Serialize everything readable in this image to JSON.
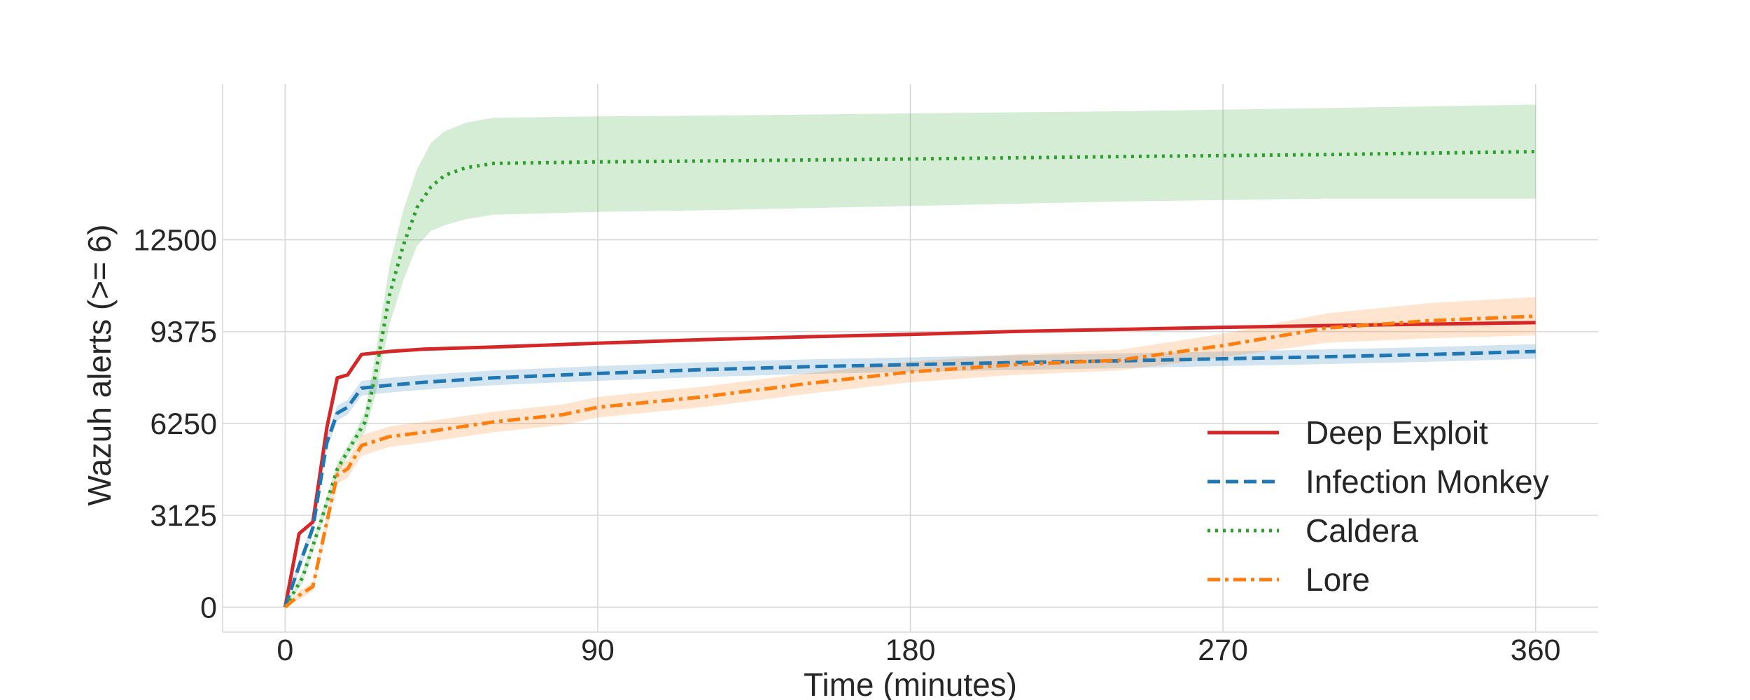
{
  "chart_data": {
    "type": "line",
    "xlabel": "Time (minutes)",
    "ylabel": "Wazuh alerts (>= 6)",
    "xlim": [
      -18,
      378
    ],
    "ylim": [
      -850,
      17800
    ],
    "xticks": [
      0,
      90,
      180,
      270,
      360
    ],
    "yticks": [
      0,
      3125,
      6250,
      9375,
      12500
    ],
    "grid": true,
    "legend_position": "lower right",
    "series": [
      {
        "name": "Deep Exploit",
        "color": "#d62728",
        "style": "solid",
        "x": [
          0,
          4,
          8,
          12,
          15,
          18,
          22,
          30,
          40,
          60,
          90,
          120,
          150,
          180,
          210,
          240,
          270,
          300,
          330,
          360
        ],
        "y": [
          0,
          2500,
          2900,
          6100,
          7800,
          7900,
          8600,
          8700,
          8780,
          8850,
          8980,
          9100,
          9200,
          9280,
          9380,
          9450,
          9520,
          9580,
          9630,
          9680
        ],
        "band_lower": null,
        "band_upper": null
      },
      {
        "name": "Infection Monkey",
        "color": "#1f77b4",
        "style": "dashed",
        "x": [
          0,
          4,
          8,
          12,
          15,
          18,
          22,
          30,
          40,
          60,
          90,
          120,
          150,
          180,
          210,
          240,
          270,
          300,
          330,
          360
        ],
        "y": [
          0,
          1400,
          2700,
          5600,
          6600,
          6800,
          7450,
          7550,
          7650,
          7800,
          7950,
          8080,
          8180,
          8250,
          8320,
          8380,
          8450,
          8520,
          8600,
          8700
        ],
        "band_lower": [
          0,
          1200,
          2500,
          5350,
          6350,
          6550,
          7200,
          7300,
          7400,
          7550,
          7700,
          7830,
          7930,
          8000,
          8070,
          8130,
          8200,
          8270,
          8350,
          8450
        ],
        "band_upper": [
          0,
          1600,
          2900,
          5850,
          6850,
          7050,
          7700,
          7800,
          7900,
          8050,
          8200,
          8330,
          8430,
          8500,
          8570,
          8630,
          8700,
          8770,
          8850,
          8950
        ]
      },
      {
        "name": "Caldera",
        "color": "#2ca02c",
        "style": "dotted",
        "x": [
          0,
          5,
          10,
          15,
          20,
          23,
          26,
          30,
          34,
          38,
          42,
          46,
          52,
          60,
          90,
          120,
          180,
          240,
          300,
          360
        ],
        "y": [
          0,
          1000,
          2800,
          4700,
          5700,
          6300,
          7900,
          10600,
          12300,
          13600,
          14300,
          14700,
          14950,
          15100,
          15150,
          15180,
          15250,
          15330,
          15400,
          15500
        ],
        "band_lower": [
          0,
          800,
          2600,
          4500,
          5500,
          5950,
          7200,
          9600,
          11100,
          12300,
          12800,
          13000,
          13200,
          13350,
          13450,
          13500,
          13650,
          13800,
          13900,
          13900
        ],
        "band_upper": [
          0,
          1200,
          3000,
          4900,
          5900,
          6650,
          8600,
          11600,
          13500,
          14900,
          15800,
          16200,
          16480,
          16650,
          16700,
          16720,
          16800,
          16870,
          16980,
          17100
        ]
      },
      {
        "name": "Lore",
        "color": "#ff7f0e",
        "style": "dashdot",
        "x": [
          0,
          4,
          8,
          12,
          15,
          18,
          22,
          30,
          40,
          60,
          80,
          90,
          120,
          150,
          180,
          210,
          240,
          270,
          300,
          330,
          360
        ],
        "y": [
          0,
          400,
          700,
          2900,
          4500,
          4700,
          5500,
          5800,
          5950,
          6300,
          6550,
          6800,
          7150,
          7600,
          8000,
          8250,
          8400,
          8900,
          9500,
          9750,
          9900
        ],
        "band_lower": [
          0,
          250,
          550,
          2600,
          4200,
          4400,
          5150,
          5450,
          5600,
          5950,
          6200,
          6450,
          6800,
          7250,
          7650,
          7900,
          8050,
          8500,
          9000,
          9150,
          9250
        ],
        "band_upper": [
          0,
          550,
          850,
          3200,
          4800,
          5000,
          5850,
          6150,
          6300,
          6650,
          6900,
          7150,
          7500,
          7950,
          8350,
          8600,
          8750,
          9300,
          10000,
          10350,
          10550
        ]
      }
    ]
  }
}
